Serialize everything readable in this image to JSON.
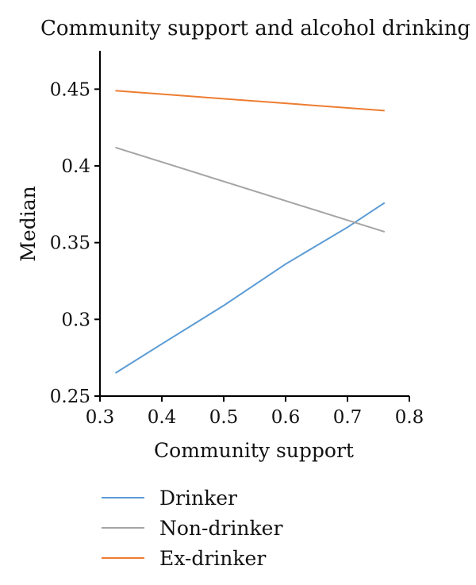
{
  "chart_data": {
    "type": "line",
    "title": "Community support and alcohol drinking",
    "xlabel": "Community support",
    "ylabel": "Median",
    "xlim": [
      0.3,
      0.8
    ],
    "ylim": [
      0.25,
      0.475
    ],
    "xticks": [
      0.3,
      0.4,
      0.5,
      0.6,
      0.7,
      0.8
    ],
    "xtick_labels": [
      "0.3",
      "0.4",
      "0.5",
      "0.6",
      "0.7",
      "0.8"
    ],
    "yticks": [
      0.25,
      0.3,
      0.35,
      0.4,
      0.45
    ],
    "ytick_labels": [
      "0.25",
      "0.3",
      "0.35",
      "0.4",
      "0.45"
    ],
    "grid": false,
    "legend_position": "bottom",
    "series": [
      {
        "name": "Drinker",
        "color": "#5b9bd5",
        "x": [
          0.325,
          0.4,
          0.5,
          0.6,
          0.7,
          0.76
        ],
        "y": [
          0.265,
          0.284,
          0.309,
          0.336,
          0.36,
          0.376
        ]
      },
      {
        "name": "Non-drinker",
        "color": "#a5a5a5",
        "x": [
          0.325,
          0.76
        ],
        "y": [
          0.412,
          0.357
        ]
      },
      {
        "name": "Ex-drinker",
        "color": "#ed7d31",
        "x": [
          0.325,
          0.76
        ],
        "y": [
          0.449,
          0.436
        ]
      }
    ]
  }
}
